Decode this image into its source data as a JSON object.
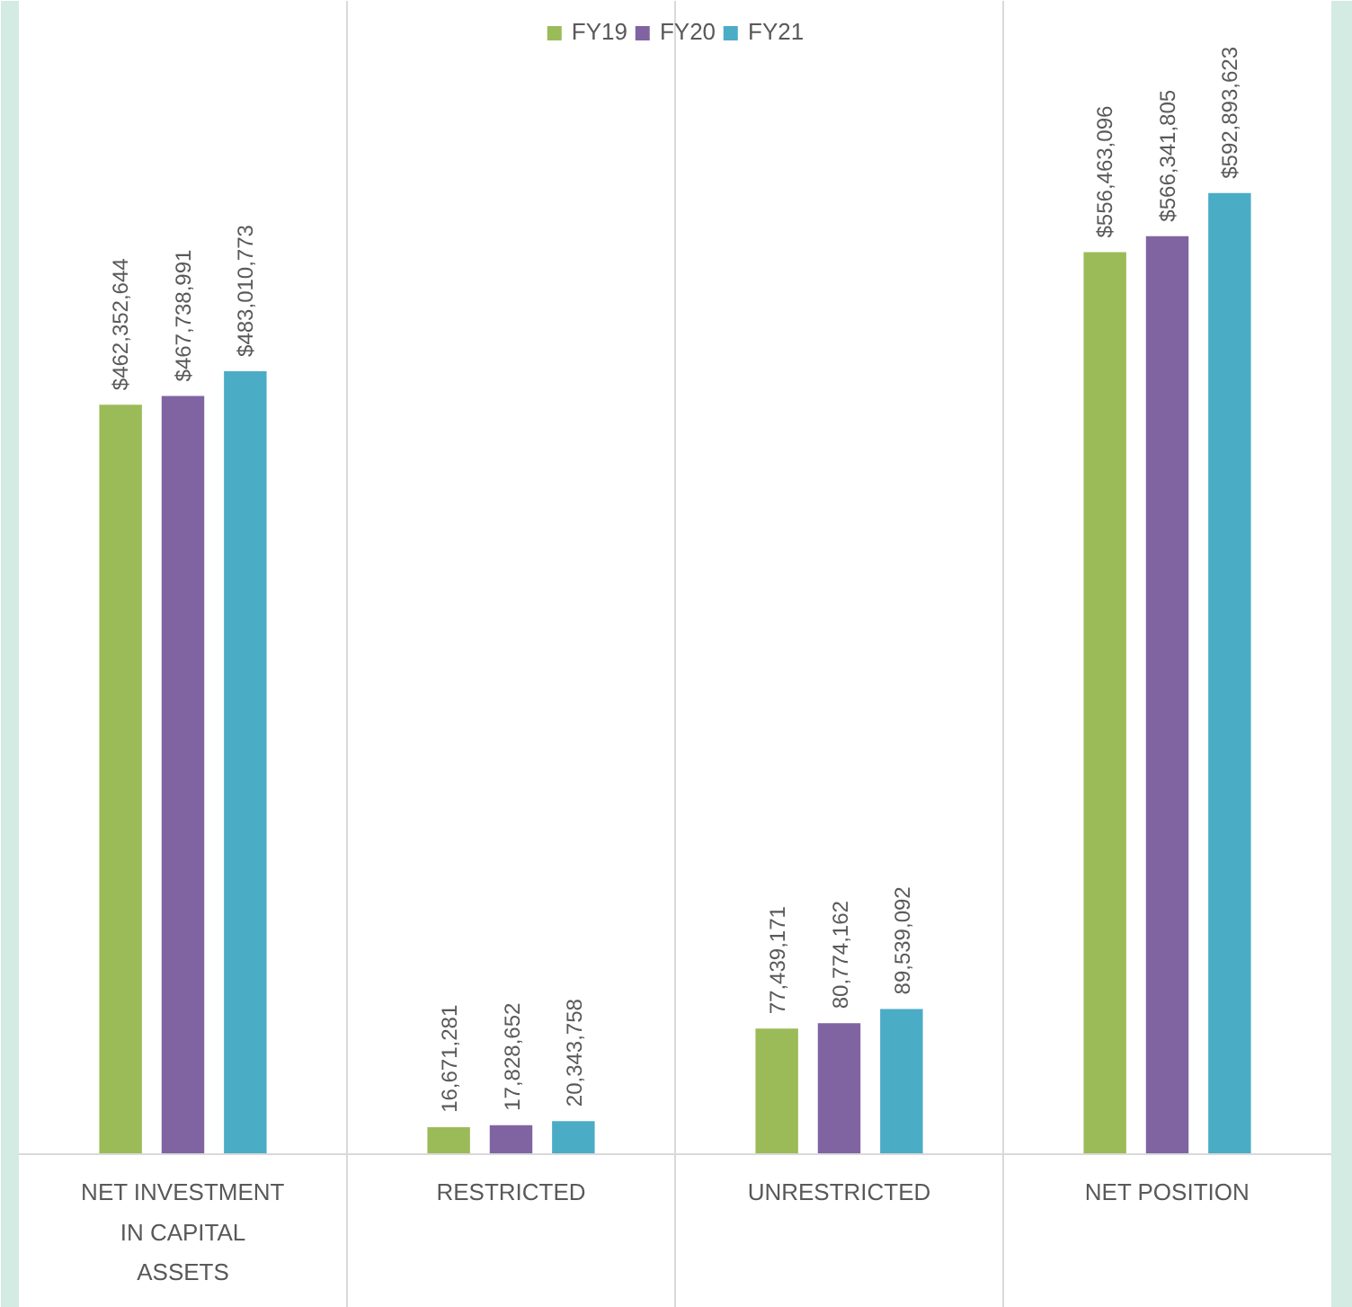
{
  "chart_data": {
    "type": "bar",
    "categories": [
      "NET INVESTMENT IN CAPITAL ASSETS",
      "RESTRICTED",
      "UNRESTRICTED",
      "NET POSITION"
    ],
    "series": [
      {
        "name": "FY19",
        "color": "#9bbb59",
        "values": [
          462352644,
          16671281,
          77439171,
          556463096
        ],
        "value_labels": [
          "$462,352,644",
          "16,671,281",
          "77,439,171",
          "$556,463,096"
        ]
      },
      {
        "name": "FY20",
        "color": "#8064a2",
        "values": [
          467738991,
          17828652,
          80774162,
          566341805
        ],
        "value_labels": [
          "$467,738,991",
          "17,828,652",
          "80,774,162",
          "$566,341,805"
        ]
      },
      {
        "name": "FY21",
        "color": "#4bacc6",
        "values": [
          483010773,
          20343758,
          89539092,
          592893623
        ],
        "value_labels": [
          "$483,010,773",
          "20,343,758",
          "89,539,092",
          "$592,893,623"
        ]
      }
    ],
    "legend": "top",
    "grid": "x"
  }
}
